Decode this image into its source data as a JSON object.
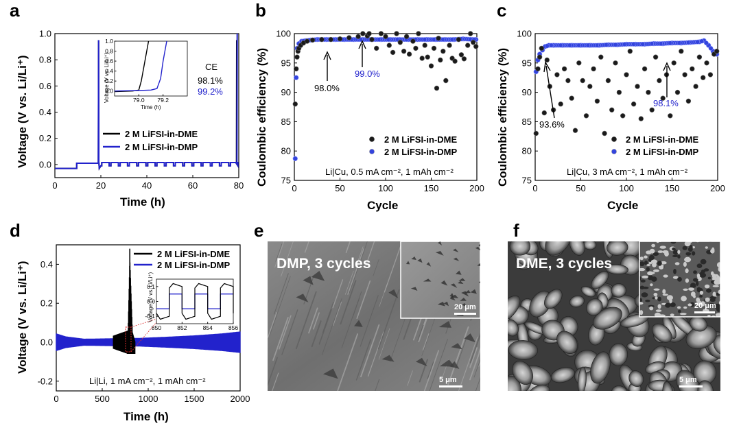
{
  "colors": {
    "dme": "#000000",
    "dmp": "#2222cc",
    "point_black": "#1a1a1a",
    "point_blue": "#3344dd",
    "sem_gray": "#7d7d7d"
  },
  "panels": {
    "a": "a",
    "b": "b",
    "c": "c",
    "d": "d",
    "e": "e",
    "f": "f"
  },
  "chart_data": [
    {
      "panel": "a",
      "type": "line",
      "xlabel": "Time (h)",
      "ylabel": "Voltage (V vs. Li/Li⁺)",
      "xlim": [
        0,
        80
      ],
      "ylim": [
        -0.1,
        1.0
      ],
      "xticks": [
        "0",
        "20",
        "40",
        "60",
        "80"
      ],
      "yticks": [
        "0.0",
        "0.2",
        "0.4",
        "0.6",
        "0.8",
        "1.0"
      ],
      "series": [
        {
          "name": "2 M LiFSI-in-DME",
          "points": [
            [
              0,
              -0.03
            ],
            [
              9.5,
              -0.03
            ],
            [
              9.6,
              0.01
            ],
            [
              18.9,
              0.01
            ],
            [
              19.0,
              0.95
            ],
            [
              19.2,
              0.02
            ],
            [
              19.5,
              -0.03
            ],
            [
              20,
              0.01
            ],
            [
              79.0,
              0.01
            ],
            [
              79.1,
              0.95
            ]
          ]
        },
        {
          "name": "2 M LiFSI-in-DMP",
          "points": [
            [
              0,
              -0.03
            ],
            [
              9.5,
              -0.03
            ],
            [
              9.6,
              0.01
            ],
            [
              18.9,
              0.01
            ],
            [
              19.0,
              0.95
            ],
            [
              19.2,
              0.02
            ],
            [
              19.5,
              -0.03
            ],
            [
              20,
              0.01
            ],
            [
              79.2,
              0.01
            ],
            [
              79.3,
              1.0
            ]
          ]
        }
      ],
      "legend": [
        "2 M LiFSI-in-DME",
        "2 M LiFSI-in-DMP"
      ],
      "annotations": {
        "ce_title": "CE",
        "ce_dme": "98.1%",
        "ce_dmp": "99.2%"
      },
      "inset": {
        "xlabel": "Time (h)",
        "ylabel": "Voltage (V vs. Li/Li⁺)",
        "xlim": [
          78.8,
          79.4
        ],
        "ylim": [
          -0.1,
          1.0
        ],
        "xticks": [
          "79.0",
          "79.2"
        ],
        "yticks": [
          "0.0",
          "0.2",
          "0.4",
          "0.6",
          "0.8",
          "1.0"
        ],
        "series": [
          {
            "name": "2 M LiFSI-in-DME",
            "points": [
              [
                78.8,
                -0.01
              ],
              [
                78.95,
                0.0
              ],
              [
                79.0,
                0.02
              ],
              [
                79.02,
                0.2
              ],
              [
                79.05,
                0.6
              ],
              [
                79.08,
                1.0
              ]
            ]
          },
          {
            "name": "2 M LiFSI-in-DMP",
            "points": [
              [
                78.8,
                0.0
              ],
              [
                79.0,
                0.01
              ],
              [
                79.1,
                0.02
              ],
              [
                79.15,
                0.05
              ],
              [
                79.18,
                0.25
              ],
              [
                79.2,
                0.6
              ],
              [
                79.23,
                1.0
              ]
            ]
          }
        ]
      }
    },
    {
      "panel": "b",
      "type": "scatter",
      "xlabel": "Cycle",
      "ylabel": "Coulombic efficiency (%)",
      "xlim": [
        0,
        200
      ],
      "ylim": [
        75,
        100
      ],
      "xticks": [
        "0",
        "50",
        "100",
        "150",
        "200"
      ],
      "yticks": [
        "75",
        "80",
        "85",
        "90",
        "95",
        "100"
      ],
      "series": [
        {
          "name": "2 M LiFSI-in-DME",
          "x": [
            1,
            2,
            3,
            4,
            5,
            7,
            10,
            14,
            20,
            30,
            40,
            50,
            60,
            70,
            75,
            80,
            82,
            85,
            90,
            95,
            100,
            104,
            108,
            112,
            116,
            120,
            123,
            126,
            130,
            133,
            136,
            140,
            143,
            146,
            150,
            153,
            156,
            158,
            160,
            163,
            166,
            170,
            173,
            176,
            180,
            183,
            186,
            190,
            193,
            196,
            199
          ],
          "y": [
            88,
            94,
            96,
            97,
            97.5,
            98,
            98.4,
            98.7,
            98.9,
            99,
            99,
            99.1,
            99.3,
            99.5,
            100,
            99.6,
            100,
            99,
            97.5,
            100,
            99.5,
            98,
            96.8,
            100,
            98.5,
            97,
            99.5,
            96.5,
            98.7,
            97.5,
            100,
            95.8,
            98,
            96,
            94.5,
            97.5,
            90.7,
            99.2,
            95.5,
            97,
            92,
            98,
            95.8,
            95.3,
            99,
            96.4,
            95.7,
            98,
            100,
            98.5,
            97.8
          ]
        },
        {
          "name": "2 M LiFSI-in-DMP",
          "x": [
            1,
            2,
            3,
            5,
            8,
            12,
            18,
            25,
            35,
            45,
            55,
            65,
            75,
            85,
            95,
            105,
            115,
            125,
            135,
            145,
            155,
            165,
            175,
            185,
            195,
            199
          ],
          "y": [
            78.7,
            92.5,
            97.5,
            98.3,
            98.7,
            98.8,
            98.9,
            99,
            99,
            99,
            99,
            99,
            99,
            99,
            99,
            99,
            99,
            99,
            99,
            99,
            99,
            99,
            99,
            99.1,
            99,
            99
          ]
        }
      ],
      "legend": [
        "2 M LiFSI-in-DME",
        "2 M LiFSI-in-DMP"
      ],
      "annotations": {
        "dme": "98.0%",
        "dmp": "99.0%",
        "condition": "Li|Cu, 0.5 mA cm⁻², 1 mAh cm⁻²"
      }
    },
    {
      "panel": "c",
      "type": "scatter",
      "xlabel": "Cycle",
      "ylabel": "Coulombic efficiency (%)",
      "xlim": [
        0,
        200
      ],
      "ylim": [
        75,
        100
      ],
      "xticks": [
        "0",
        "50",
        "100",
        "150",
        "200"
      ],
      "yticks": [
        "75",
        "80",
        "85",
        "90",
        "95",
        "100"
      ],
      "series": [
        {
          "name": "2 M LiFSI-in-DME",
          "x": [
            1,
            3,
            5,
            7,
            10,
            13,
            16,
            20,
            24,
            28,
            32,
            36,
            40,
            44,
            48,
            52,
            56,
            60,
            64,
            68,
            72,
            76,
            80,
            84,
            88,
            92,
            96,
            100,
            104,
            108,
            112,
            116,
            120,
            124,
            128,
            132,
            136,
            140,
            144,
            148,
            152,
            156,
            160,
            164,
            168,
            172,
            176,
            180,
            184,
            188,
            192,
            196,
            199
          ],
          "y": [
            83,
            94,
            96,
            97.5,
            86.5,
            95.5,
            91,
            87,
            93,
            88,
            94,
            92,
            89,
            83.5,
            95,
            92,
            86,
            91,
            94,
            88.5,
            96,
            83,
            92,
            87,
            95,
            90,
            86,
            93,
            97,
            88,
            91,
            85.5,
            94,
            90,
            87,
            96,
            92,
            89,
            93,
            86,
            95,
            90,
            97,
            93,
            88.5,
            94,
            91,
            96,
            92.5,
            95,
            93,
            96.5,
            97
          ]
        },
        {
          "name": "2 M LiFSI-in-DMP",
          "x": [
            1,
            3,
            5,
            8,
            11,
            15,
            20,
            30,
            40,
            50,
            60,
            70,
            80,
            90,
            100,
            110,
            120,
            130,
            140,
            150,
            160,
            170,
            180,
            185,
            190,
            195,
            199
          ],
          "y": [
            93.5,
            95.5,
            96.5,
            97.2,
            97.8,
            98,
            98,
            98,
            98,
            98,
            98,
            98,
            98.1,
            98.1,
            98.2,
            98.2,
            98.2,
            98.3,
            98.3,
            98.4,
            98.4,
            98.5,
            98.6,
            98.8,
            98,
            97,
            96.5
          ]
        }
      ],
      "legend": [
        "2 M LiFSI-in-DME",
        "2 M LiFSI-in-DMP"
      ],
      "annotations": {
        "dme": "93.6%",
        "dmp": "98.1%",
        "condition": "Li|Cu, 3 mA cm⁻², 1 mAh cm⁻²"
      }
    },
    {
      "panel": "d",
      "type": "line",
      "xlabel": "Time (h)",
      "ylabel": "Voltage (V vs. Li/Li⁺)",
      "xlim": [
        0,
        2000
      ],
      "ylim": [
        -0.25,
        0.5
      ],
      "xticks": [
        "0",
        "500",
        "1000",
        "1500",
        "2000"
      ],
      "yticks": [
        "-0.2",
        "0.0",
        "0.2",
        "0.4"
      ],
      "series": [
        {
          "name": "2 M LiFSI-in-DME",
          "envelope": [
            [
              0,
              0.045
            ],
            [
              100,
              0.03
            ],
            [
              300,
              0.02
            ],
            [
              600,
              0.03
            ],
            [
              780,
              0.06
            ],
            [
              800,
              0.45
            ],
            [
              830,
              0.05
            ],
            [
              860,
              0.0
            ]
          ]
        },
        {
          "name": "2 M LiFSI-in-DMP",
          "envelope": [
            [
              0,
              0.045
            ],
            [
              100,
              0.03
            ],
            [
              300,
              0.018
            ],
            [
              600,
              0.02
            ],
            [
              900,
              0.022
            ],
            [
              1200,
              0.028
            ],
            [
              1500,
              0.035
            ],
            [
              1800,
              0.045
            ],
            [
              2000,
              0.055
            ]
          ]
        }
      ],
      "legend": [
        "2 M LiFSI-in-DME",
        "2 M LiFSI-in-DMP"
      ],
      "annotations": {
        "condition": "Li|Li, 1 mA cm⁻², 1 mAh cm⁻²"
      },
      "inset": {
        "xlabel": "Time (h)",
        "ylabel": "Voltage (V vs. Li/Li⁺)",
        "xlim": [
          850,
          856
        ],
        "ylim": [
          -0.15,
          0.15
        ],
        "xticks": [
          "850",
          "852",
          "854",
          "856"
        ],
        "yticks": [
          "-0.1",
          "0.0",
          "0.1"
        ]
      }
    }
  ],
  "sem": {
    "e": {
      "title": "DMP, 3 cycles",
      "scale_main": "5 μm",
      "scale_inset": "20 μm"
    },
    "f": {
      "title": "DME, 3 cycles",
      "scale_main": "5 μm",
      "scale_inset": "20 μm"
    }
  }
}
